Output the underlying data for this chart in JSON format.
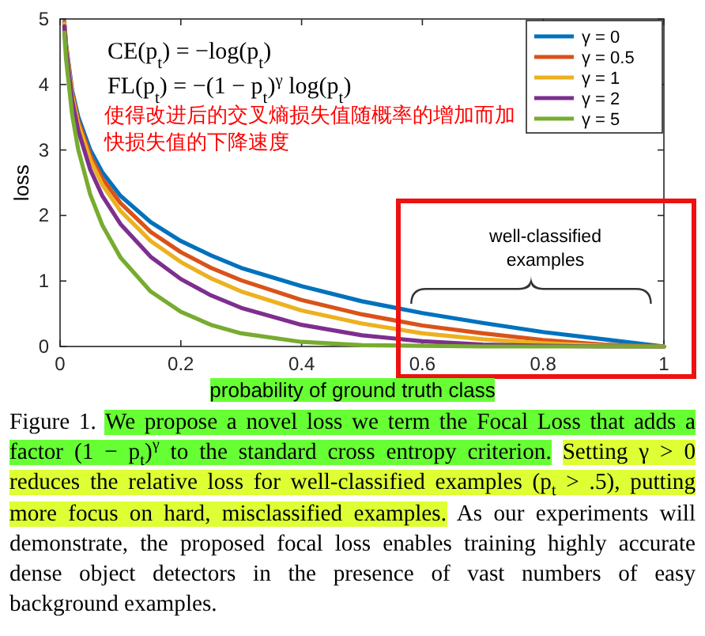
{
  "chart_data": {
    "type": "line",
    "xlabel": "probability of ground truth class",
    "ylabel": "loss",
    "x": [
      0.007,
      0.01,
      0.02,
      0.03,
      0.05,
      0.07,
      0.1,
      0.15,
      0.2,
      0.25,
      0.3,
      0.4,
      0.5,
      0.6,
      0.7,
      0.8,
      0.9,
      1.0
    ],
    "series": [
      {
        "name": "γ = 0",
        "color": "#0072bd",
        "values": [
          4.96,
          4.61,
          3.91,
          3.51,
          3.0,
          2.66,
          2.3,
          1.9,
          1.61,
          1.39,
          1.2,
          0.92,
          0.69,
          0.51,
          0.36,
          0.22,
          0.11,
          0.0
        ]
      },
      {
        "name": "γ = 0.5",
        "color": "#d95319",
        "values": [
          4.95,
          4.58,
          3.87,
          3.45,
          2.92,
          2.56,
          2.19,
          1.75,
          1.44,
          1.2,
          1.01,
          0.71,
          0.49,
          0.32,
          0.2,
          0.1,
          0.03,
          0.0
        ]
      },
      {
        "name": "γ = 1",
        "color": "#edb120",
        "values": [
          4.93,
          4.56,
          3.83,
          3.4,
          2.85,
          2.47,
          2.07,
          1.61,
          1.29,
          1.04,
          0.84,
          0.55,
          0.35,
          0.2,
          0.11,
          0.05,
          0.01,
          0.0
        ]
      },
      {
        "name": "γ = 2",
        "color": "#7e2f8e",
        "values": [
          4.89,
          4.51,
          3.76,
          3.3,
          2.7,
          2.3,
          1.87,
          1.37,
          1.03,
          0.78,
          0.59,
          0.33,
          0.17,
          0.08,
          0.03,
          0.01,
          0.0,
          0.0
        ]
      },
      {
        "name": "γ = 5",
        "color": "#77ac30",
        "values": [
          4.79,
          4.38,
          3.54,
          3.01,
          2.32,
          1.85,
          1.36,
          0.84,
          0.53,
          0.33,
          0.2,
          0.07,
          0.02,
          0.01,
          0.0,
          0.0,
          0.0,
          0.0
        ]
      }
    ],
    "xlim": [
      0,
      1
    ],
    "xticks": [
      0,
      0.2,
      0.4,
      0.6,
      0.8,
      1
    ],
    "ylim": [
      0,
      5
    ],
    "yticks": [
      0,
      1,
      2,
      3,
      4,
      5
    ],
    "legend": "top right",
    "grid": false,
    "annotations": [
      "CE(p$_{t}$) = −log(p$_{t}$)",
      "FL(p$_{t}$) = −(1 − p$_{t}$)$^{γ}$ log(p$_{t}$)",
      "使得改进后的交叉熵损失值随概率的增加而加快损失值的下降速度",
      "well-classified examples",
      "Figure 1.",
      "We propose a novel loss we term the Focal Loss that adds a factor (1 − p$_{t}$)$^{γ}$ to the standard cross entropy criterion.",
      "Setting γ > 0 reduces the relative loss for well-classified examples (p$_{t}$ > .5), putting more focus on hard, misclassified examples.",
      "As our experiments will demonstrate, the proposed focal loss enables training highly accurate dense object detectors in the presence of vast numbers of easy background examples."
    ]
  }
}
